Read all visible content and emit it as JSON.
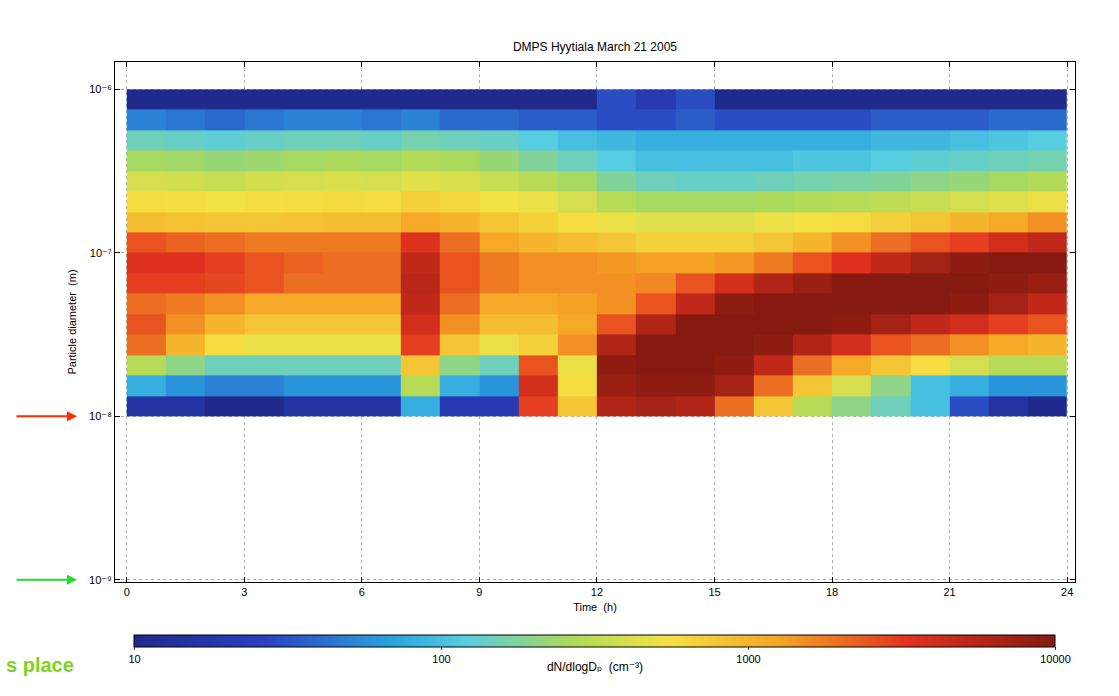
{
  "chart_data": {
    "type": "heatmap",
    "title": "DMPS Hyytiala March 21 2005",
    "x_label": "Time  (h)",
    "y_label": "Particle diameter  (m)",
    "x": [
      0.5,
      1.5,
      2.5,
      3.5,
      4.5,
      5.5,
      6.5,
      7.5,
      8.5,
      9.5,
      10.5,
      11.5,
      12.5,
      13.5,
      14.5,
      15.5,
      16.5,
      17.5,
      18.5,
      19.5,
      20.5,
      21.5,
      22.5,
      23.5
    ],
    "y": [
      1.155e-08,
      1.54e-08,
      2.054e-08,
      2.738e-08,
      3.652e-08,
      4.87e-08,
      6.494e-08,
      8.66e-08,
      1.155e-07,
      1.54e-07,
      2.054e-07,
      2.738e-07,
      3.652e-07,
      4.87e-07,
      6.494e-07,
      8.66e-07
    ],
    "cells": [
      [
        15,
        15,
        10,
        10,
        15,
        15,
        15,
        80,
        20,
        20,
        3000,
        800,
        6000,
        7000,
        6000,
        2000,
        800,
        300,
        200,
        150,
        100,
        30,
        15,
        10
      ],
      [
        80,
        60,
        50,
        50,
        60,
        60,
        60,
        300,
        80,
        60,
        4000,
        600,
        8000,
        9000,
        9000,
        7000,
        2000,
        800,
        400,
        200,
        100,
        80,
        60,
        60
      ],
      [
        300,
        200,
        150,
        150,
        150,
        150,
        150,
        800,
        200,
        150,
        2500,
        500,
        9000,
        10000,
        10000,
        9000,
        5000,
        2000,
        1200,
        800,
        600,
        400,
        300,
        300
      ],
      [
        2000,
        1000,
        600,
        500,
        500,
        500,
        500,
        3000,
        800,
        500,
        700,
        1500,
        6000,
        10000,
        10000,
        10000,
        9000,
        6000,
        4000,
        2500,
        2000,
        1500,
        1200,
        1000
      ],
      [
        2500,
        1500,
        1000,
        800,
        800,
        800,
        800,
        4000,
        1500,
        900,
        900,
        1200,
        2500,
        6000,
        10000,
        10000,
        10000,
        10000,
        9000,
        7000,
        5000,
        4000,
        3000,
        2500
      ],
      [
        2000,
        1800,
        1500,
        1200,
        1200,
        1200,
        1200,
        5000,
        2000,
        1200,
        1200,
        1300,
        1500,
        2500,
        5000,
        9000,
        10000,
        10000,
        10000,
        10000,
        10000,
        9000,
        7000,
        5000
      ],
      [
        3000,
        3000,
        2800,
        2500,
        2000,
        2000,
        2000,
        5500,
        2500,
        1800,
        1500,
        1500,
        1500,
        1600,
        2500,
        4000,
        6000,
        8000,
        10000,
        10000,
        10000,
        10000,
        9000,
        8000
      ],
      [
        3500,
        3500,
        3000,
        2500,
        2200,
        2000,
        2000,
        5000,
        2500,
        1800,
        1500,
        1500,
        1400,
        1300,
        1300,
        1400,
        1800,
        2500,
        3500,
        5000,
        7000,
        9000,
        10000,
        10000
      ],
      [
        2500,
        2200,
        2000,
        1800,
        1800,
        1800,
        1800,
        3500,
        2000,
        1200,
        1000,
        900,
        800,
        700,
        700,
        700,
        800,
        1000,
        1500,
        2000,
        2500,
        3000,
        4000,
        5000
      ],
      [
        900,
        850,
        800,
        800,
        850,
        900,
        900,
        1200,
        1000,
        800,
        700,
        600,
        500,
        450,
        450,
        450,
        500,
        550,
        600,
        700,
        800,
        1000,
        1200,
        1500
      ],
      [
        600,
        580,
        550,
        580,
        600,
        620,
        600,
        700,
        650,
        550,
        500,
        400,
        300,
        250,
        250,
        250,
        260,
        280,
        300,
        320,
        350,
        400,
        450,
        500
      ],
      [
        400,
        380,
        350,
        380,
        400,
        420,
        400,
        450,
        420,
        350,
        300,
        250,
        180,
        150,
        140,
        140,
        150,
        160,
        170,
        180,
        200,
        220,
        250,
        280
      ],
      [
        250,
        240,
        220,
        230,
        250,
        260,
        250,
        280,
        260,
        220,
        180,
        150,
        120,
        100,
        100,
        100,
        100,
        110,
        110,
        120,
        130,
        140,
        150,
        160
      ],
      [
        150,
        140,
        130,
        140,
        150,
        150,
        140,
        160,
        150,
        140,
        120,
        100,
        90,
        80,
        80,
        80,
        80,
        80,
        80,
        90,
        90,
        100,
        110,
        120
      ],
      [
        50,
        45,
        40,
        45,
        50,
        50,
        45,
        50,
        40,
        40,
        35,
        35,
        30,
        30,
        35,
        30,
        30,
        30,
        30,
        35,
        35,
        35,
        40,
        40
      ],
      [
        10,
        10,
        10,
        10,
        10,
        10,
        10,
        10,
        10,
        10,
        10,
        10,
        30,
        20,
        30,
        10,
        10,
        10,
        10,
        10,
        10,
        10,
        10,
        10
      ]
    ],
    "xlim": [
      -0.3,
      24.2
    ],
    "xticks": [
      0,
      3,
      6,
      9,
      12,
      15,
      18,
      21,
      24
    ],
    "ylim": [
      9.7e-10,
      1.47e-06
    ],
    "yticks": [
      {
        "value": 1e-09,
        "label": "10⁻⁹"
      },
      {
        "value": 1e-08,
        "label": "10⁻⁸"
      },
      {
        "value": 1e-07,
        "label": "10⁻⁷"
      },
      {
        "value": 1e-06,
        "label": "10⁻⁶"
      }
    ],
    "log": true,
    "grid": true,
    "colorbar": {
      "label": "dN/dlogDₚ  (cm⁻³)",
      "range": [
        10,
        10000
      ],
      "ticks": [
        10,
        100,
        1000,
        10000
      ]
    },
    "annotations": [
      {
        "text": "s place",
        "color": "#7ed321"
      }
    ]
  }
}
